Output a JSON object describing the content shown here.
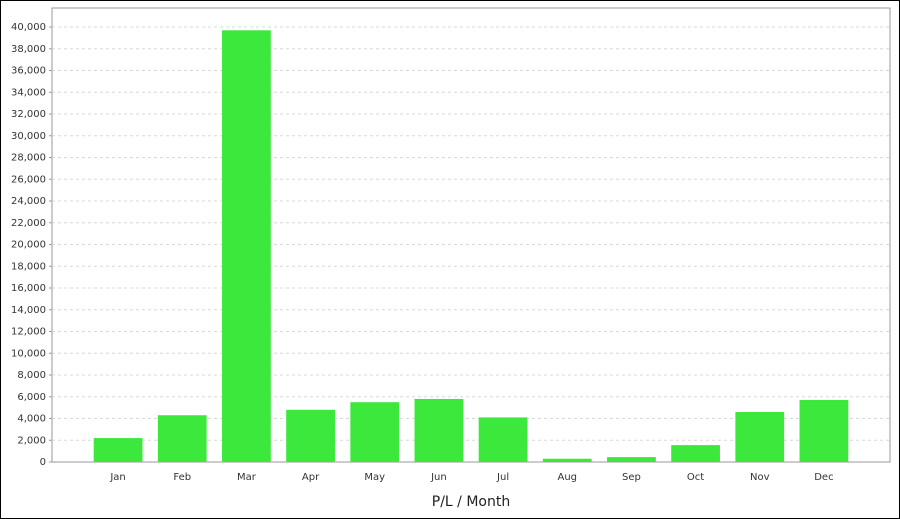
{
  "chart_data": {
    "type": "bar",
    "x_label": "P/L / Month",
    "categories": [
      "Jan",
      "Feb",
      "Mar",
      "Apr",
      "May",
      "Jun",
      "Jul",
      "Aug",
      "Sep",
      "Oct",
      "Nov",
      "Dec"
    ],
    "values": [
      2200,
      4300,
      39700,
      4800,
      5500,
      5800,
      4100,
      300,
      450,
      1550,
      4600,
      5700
    ],
    "color": "#3de83d",
    "ylim": [
      0,
      41750
    ],
    "yticks": [
      0,
      {
        "value": 2000,
        "label": "2,000"
      },
      {
        "value": 4000,
        "label": "4,000"
      },
      {
        "value": 6000,
        "label": "6,000"
      },
      {
        "value": 8000,
        "label": "8,000"
      },
      {
        "value": 10000,
        "label": "10,000"
      },
      {
        "value": 12000,
        "label": "12,000"
      },
      {
        "value": 14000,
        "label": "14,000"
      },
      {
        "value": 16000,
        "label": "16,000"
      },
      {
        "value": 18000,
        "label": "18,000"
      },
      {
        "value": 20000,
        "label": "20,000"
      },
      {
        "value": 22000,
        "label": "22,000"
      },
      {
        "value": 24000,
        "label": "24,000"
      },
      {
        "value": 26000,
        "label": "26,000"
      },
      {
        "value": 28000,
        "label": "28,000"
      },
      {
        "value": 30000,
        "label": "30,000"
      },
      {
        "value": 32000,
        "label": "32,000"
      },
      {
        "value": 34000,
        "label": "34,000"
      },
      {
        "value": 36000,
        "label": "36,000"
      },
      {
        "value": 38000,
        "label": "38,000"
      },
      {
        "value": 40000,
        "label": "40,000"
      }
    ],
    "grid": true
  }
}
